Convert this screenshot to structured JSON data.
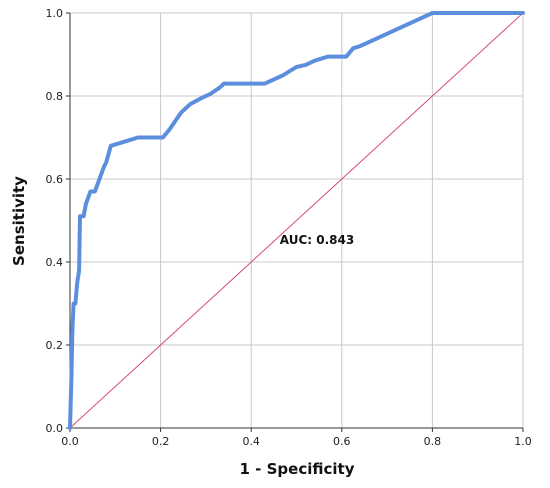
{
  "chart_data": {
    "type": "line",
    "title": "",
    "xlabel": "1 - Specificity",
    "ylabel": "Sensitivity",
    "xlim": [
      0,
      1
    ],
    "ylim": [
      0,
      1
    ],
    "x_ticks": [
      "0.0",
      "0.2",
      "0.4",
      "0.6",
      "0.8",
      "1.0"
    ],
    "y_ticks": [
      "0.0",
      "0.2",
      "0.4",
      "0.6",
      "0.8",
      "1.0"
    ],
    "grid": true,
    "legend": "none",
    "annotation": "AUC: 0.843",
    "series": [
      {
        "color": "#5b8fde",
        "x": [
          0.0,
          0.003,
          0.005,
          0.008,
          0.012,
          0.016,
          0.02,
          0.022,
          0.03,
          0.035,
          0.045,
          0.055,
          0.075,
          0.08,
          0.09,
          0.12,
          0.15,
          0.2,
          0.205,
          0.22,
          0.245,
          0.265,
          0.29,
          0.31,
          0.33,
          0.34,
          0.36,
          0.38,
          0.4,
          0.42,
          0.43,
          0.45,
          0.47,
          0.5,
          0.52,
          0.54,
          0.57,
          0.6,
          0.61,
          0.625,
          0.64,
          0.68,
          0.72,
          0.76,
          0.8,
          0.83,
          1.0
        ],
        "y": [
          0.0,
          0.12,
          0.23,
          0.3,
          0.3,
          0.35,
          0.38,
          0.51,
          0.51,
          0.54,
          0.57,
          0.57,
          0.63,
          0.64,
          0.68,
          0.69,
          0.7,
          0.7,
          0.7,
          0.72,
          0.76,
          0.78,
          0.795,
          0.805,
          0.82,
          0.83,
          0.83,
          0.83,
          0.83,
          0.83,
          0.83,
          0.84,
          0.85,
          0.87,
          0.875,
          0.885,
          0.895,
          0.895,
          0.895,
          0.915,
          0.92,
          0.94,
          0.96,
          0.98,
          1.0,
          1.0,
          1.0
        ]
      },
      {
        "color": "#d94c6e",
        "x": [
          0,
          1
        ],
        "y": [
          0,
          1
        ]
      }
    ]
  },
  "colors": {
    "grid": "#c8c8c8",
    "axis": "#333333",
    "roc_curve": "#5b8fde",
    "reference_line": "#d94c6e"
  }
}
